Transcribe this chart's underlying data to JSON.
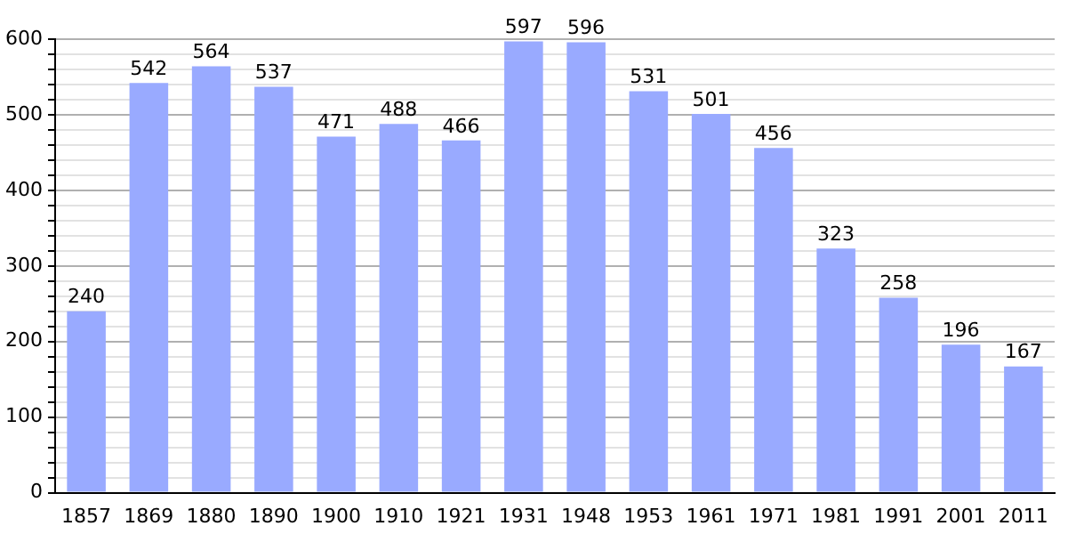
{
  "chart_data": {
    "type": "bar",
    "categories": [
      "1857",
      "1869",
      "1880",
      "1890",
      "1900",
      "1910",
      "1921",
      "1931",
      "1948",
      "1953",
      "1961",
      "1971",
      "1981",
      "1991",
      "2001",
      "2011"
    ],
    "values": [
      240,
      542,
      564,
      537,
      471,
      488,
      466,
      597,
      596,
      531,
      501,
      456,
      323,
      258,
      196,
      167
    ],
    "color": "#99aaff",
    "data_labels": true,
    "grid": "y",
    "legend": false,
    "ylim": [
      0,
      600
    ],
    "yticks": [
      0,
      {
        "value": 20,
        "label": null
      },
      {
        "value": 40,
        "label": null
      },
      {
        "value": 60,
        "label": null
      },
      {
        "value": 80,
        "label": null
      },
      100,
      {
        "value": 120,
        "label": null
      },
      {
        "value": 140,
        "label": null
      },
      {
        "value": 160,
        "label": null
      },
      {
        "value": 180,
        "label": null
      },
      200,
      {
        "value": 220,
        "label": null
      },
      {
        "value": 240,
        "label": null
      },
      {
        "value": 260,
        "label": null
      },
      {
        "value": 280,
        "label": null
      },
      300,
      {
        "value": 320,
        "label": null
      },
      {
        "value": 340,
        "label": null
      },
      {
        "value": 360,
        "label": null
      },
      {
        "value": 380,
        "label": null
      },
      400,
      {
        "value": 420,
        "label": null
      },
      {
        "value": 440,
        "label": null
      },
      {
        "value": 460,
        "label": null
      },
      {
        "value": 480,
        "label": null
      },
      500,
      {
        "value": 520,
        "label": null
      },
      {
        "value": 540,
        "label": null
      },
      {
        "value": 560,
        "label": null
      },
      {
        "value": 580,
        "label": null
      },
      600
    ]
  }
}
